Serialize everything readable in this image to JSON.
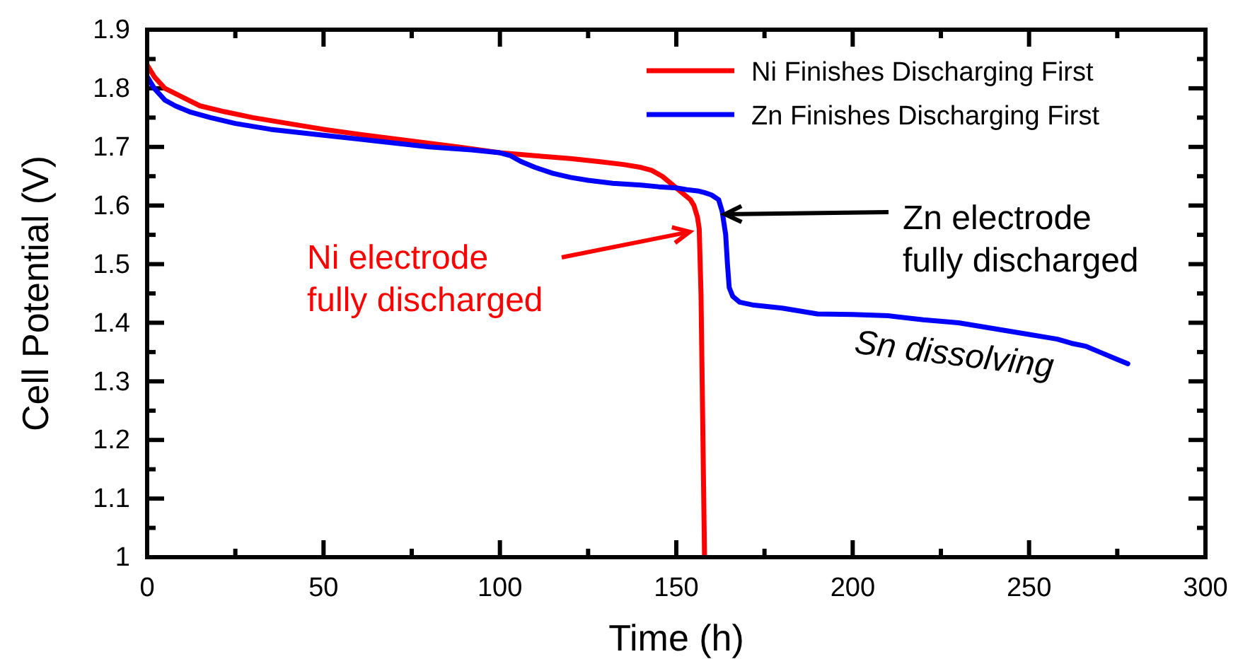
{
  "chart_data": {
    "type": "line",
    "xlabel": "Time (h)",
    "ylabel": "Cell Potential (V)",
    "xlim": [
      0,
      300
    ],
    "xticks": [
      0,
      50,
      100,
      150,
      200,
      250,
      300
    ],
    "ylim": [
      1,
      1.9
    ],
    "yticks": [
      1,
      1.1,
      1.2,
      1.3,
      1.4,
      1.5,
      1.6,
      1.7,
      1.8,
      1.9
    ],
    "grid": false,
    "legend": "top right",
    "marker": "none",
    "line_style": "solid",
    "series": [
      {
        "name": "Ni Finishes Discharging First",
        "color": "#ff0000",
        "x": [
          0,
          2,
          5,
          10,
          15,
          22,
          30,
          40,
          50,
          62,
          75,
          88,
          100,
          110,
          120,
          128,
          135,
          140,
          143,
          146,
          148,
          150,
          152,
          154,
          155,
          156,
          156.5,
          157,
          158
        ],
        "values": [
          1.84,
          1.82,
          1.8,
          1.785,
          1.77,
          1.76,
          1.75,
          1.74,
          1.73,
          1.72,
          1.71,
          1.7,
          1.69,
          1.685,
          1.68,
          1.675,
          1.67,
          1.665,
          1.66,
          1.65,
          1.64,
          1.63,
          1.62,
          1.61,
          1.6,
          1.58,
          1.56,
          1.45,
          1.0
        ]
      },
      {
        "name": "Zn Finishes Discharging First",
        "color": "#0000ff",
        "x": [
          0,
          2,
          5,
          8,
          12,
          18,
          25,
          35,
          50,
          65,
          80,
          92,
          100,
          103,
          106,
          110,
          115,
          120,
          125,
          132,
          140,
          145,
          150,
          153,
          156,
          158,
          160,
          162,
          163,
          164,
          164.5,
          165,
          166,
          168,
          172,
          180,
          190,
          200,
          210,
          220,
          230,
          240,
          250,
          255,
          258,
          262,
          266,
          270,
          274,
          278
        ],
        "values": [
          1.82,
          1.8,
          1.78,
          1.77,
          1.76,
          1.75,
          1.74,
          1.73,
          1.72,
          1.71,
          1.7,
          1.695,
          1.69,
          1.685,
          1.675,
          1.665,
          1.655,
          1.648,
          1.643,
          1.638,
          1.635,
          1.632,
          1.63,
          1.627,
          1.625,
          1.622,
          1.618,
          1.61,
          1.59,
          1.55,
          1.5,
          1.46,
          1.445,
          1.435,
          1.43,
          1.425,
          1.415,
          1.414,
          1.412,
          1.405,
          1.4,
          1.39,
          1.38,
          1.375,
          1.372,
          1.365,
          1.36,
          1.35,
          1.34,
          1.33
        ]
      }
    ],
    "annotations": [
      {
        "text": "Ni electrode\nfully discharged",
        "x": 155,
        "y": 1.56
      },
      {
        "text": "Zn electrode\nfully discharged",
        "x": 165,
        "y": 1.59
      },
      {
        "text": "Sn dissolving",
        "x": 230,
        "y": 1.4
      }
    ]
  }
}
